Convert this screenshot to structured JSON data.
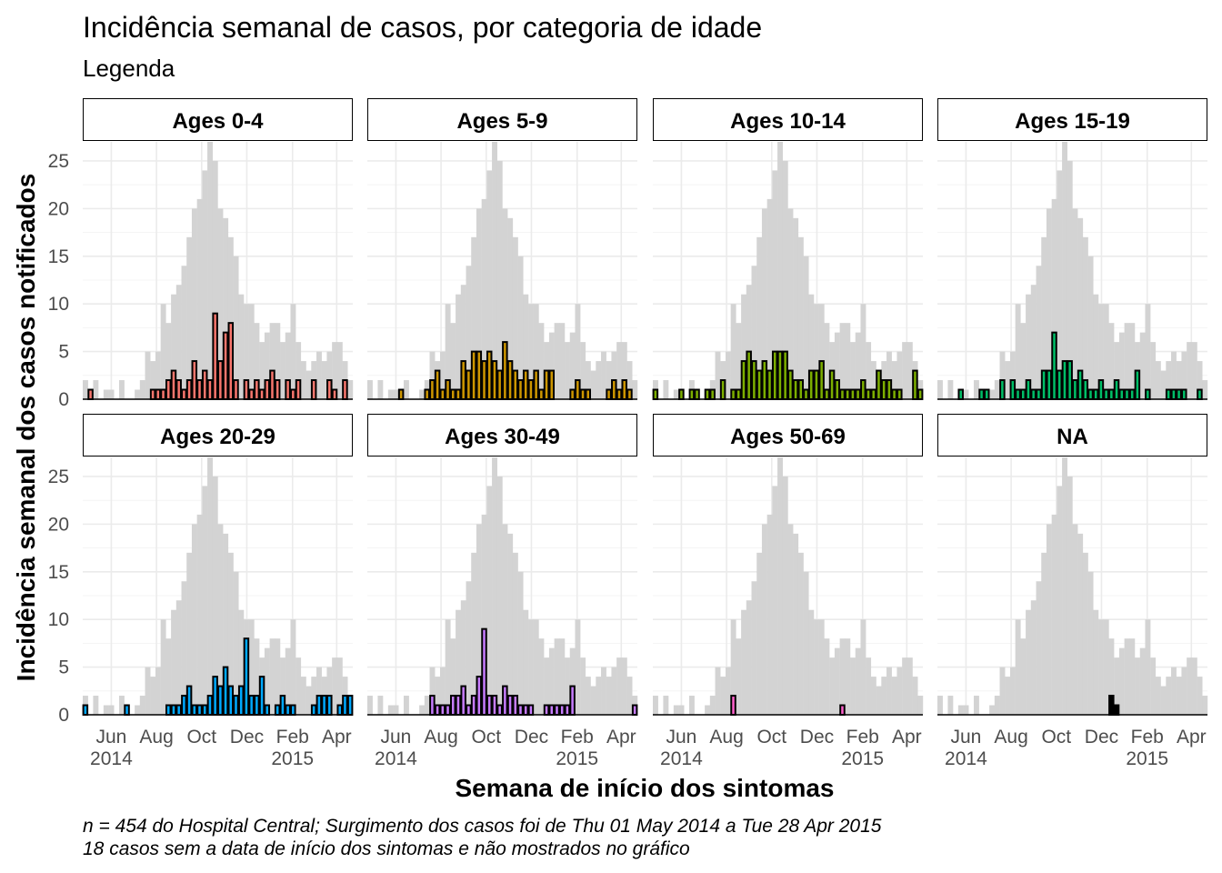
{
  "chart_data": {
    "type": "bar",
    "title": "Incidência semanal de casos, por categoria de idade",
    "subtitle": "Legenda",
    "xlabel": "Semana de início dos sintomas",
    "ylabel": "Incidência semanal dos casos notificados",
    "caption_lines": [
      "n = 454 do Hospital Central; Surgimento dos casos foi de Thu 01 May 2014 a Tue 28 Apr 2015",
      "18 casos sem a data de início dos sintomas e não mostrados no gráfico"
    ],
    "ylim": [
      0,
      27
    ],
    "y_ticks": [
      0,
      5,
      10,
      15,
      20,
      25
    ],
    "x_ticks": [
      {
        "week": 5,
        "label": "Jun",
        "sub": "2014"
      },
      {
        "week": 13.7,
        "label": "Aug",
        "sub": ""
      },
      {
        "week": 22.4,
        "label": "Oct",
        "sub": ""
      },
      {
        "week": 31.1,
        "label": "Dec",
        "sub": ""
      },
      {
        "week": 39.9,
        "label": "Feb",
        "sub": "2015"
      },
      {
        "week": 48.4,
        "label": "Apr",
        "sub": ""
      }
    ],
    "weeks": 52,
    "background_series": [
      2,
      0,
      2,
      0,
      1,
      1,
      0,
      2,
      0,
      0,
      1,
      2,
      5,
      4,
      5,
      10,
      8,
      11,
      12,
      14,
      17,
      20,
      21,
      24,
      27,
      25,
      20,
      19,
      17,
      15,
      11,
      10,
      10,
      8,
      6,
      7,
      8,
      8,
      6,
      7,
      10,
      6,
      4,
      3,
      4,
      5,
      4,
      5,
      6,
      6,
      4,
      2
    ],
    "background_color": "#d3d3d3",
    "panels": [
      {
        "name": "Ages 0-4",
        "color": "#f8766d",
        "values": [
          0,
          1,
          0,
          0,
          0,
          0,
          0,
          0,
          0,
          0,
          0,
          0,
          0,
          1,
          1,
          1,
          2,
          3,
          2,
          1,
          2,
          4,
          2,
          3,
          2,
          9,
          4,
          7,
          8,
          2,
          0,
          2,
          1,
          2,
          1,
          2,
          3,
          2,
          0,
          2,
          1,
          2,
          0,
          0,
          2,
          0,
          0,
          2,
          1,
          0,
          2,
          0
        ]
      },
      {
        "name": "Ages 5-9",
        "color": "#cd9600",
        "values": [
          0,
          0,
          0,
          0,
          0,
          0,
          1,
          0,
          0,
          0,
          0,
          1,
          2,
          3,
          1,
          2,
          1,
          1,
          4,
          3,
          5,
          5,
          4,
          5,
          4,
          3,
          6,
          4,
          3,
          2,
          3,
          2,
          3,
          1,
          3,
          3,
          0,
          0,
          0,
          1,
          2,
          1,
          1,
          0,
          0,
          0,
          1,
          2,
          1,
          2,
          1,
          0
        ]
      },
      {
        "name": "Ages 10-14",
        "color": "#7cae00",
        "values": [
          1,
          0,
          0,
          0,
          0,
          1,
          0,
          1,
          1,
          0,
          1,
          1,
          0,
          2,
          0,
          1,
          1,
          4,
          5,
          4,
          3,
          4,
          3,
          5,
          5,
          5,
          3,
          2,
          2,
          1,
          3,
          3,
          4,
          1,
          3,
          2,
          1,
          1,
          1,
          1,
          2,
          1,
          1,
          3,
          2,
          2,
          1,
          1,
          0,
          0,
          3,
          1
        ]
      },
      {
        "name": "Ages 15-19",
        "color": "#00be67",
        "values": [
          0,
          0,
          0,
          0,
          1,
          0,
          0,
          0,
          1,
          1,
          0,
          0,
          2,
          0,
          2,
          1,
          1,
          2,
          1,
          1,
          3,
          3,
          7,
          3,
          4,
          4,
          2,
          3,
          2,
          1,
          1,
          2,
          1,
          1,
          2,
          1,
          1,
          1,
          3,
          0,
          1,
          0,
          0,
          0,
          1,
          1,
          1,
          1,
          0,
          0,
          1,
          0
        ]
      },
      {
        "name": "Ages 20-29",
        "color": "#00a9ff",
        "values": [
          1,
          0,
          0,
          0,
          0,
          0,
          0,
          0,
          1,
          0,
          0,
          0,
          0,
          0,
          0,
          0,
          1,
          1,
          1,
          2,
          3,
          1,
          1,
          1,
          2,
          4,
          3,
          5,
          3,
          2,
          3,
          8,
          2,
          2,
          4,
          1,
          0,
          1,
          2,
          1,
          1,
          0,
          0,
          0,
          1,
          2,
          2,
          2,
          0,
          1,
          2,
          2
        ]
      },
      {
        "name": "Ages 30-49",
        "color": "#c77cff",
        "values": [
          0,
          0,
          0,
          0,
          0,
          0,
          0,
          0,
          0,
          0,
          0,
          0,
          2,
          1,
          1,
          1,
          2,
          2,
          3,
          1,
          2,
          4,
          9,
          2,
          2,
          1,
          3,
          2,
          2,
          1,
          1,
          1,
          0,
          0,
          1,
          1,
          1,
          1,
          1,
          3,
          0,
          0,
          0,
          0,
          0,
          0,
          0,
          0,
          0,
          0,
          0,
          1
        ]
      },
      {
        "name": "Ages 50-69",
        "color": "#ff61cc",
        "values": [
          0,
          0,
          0,
          0,
          0,
          0,
          0,
          0,
          0,
          0,
          0,
          0,
          0,
          0,
          0,
          2,
          0,
          0,
          0,
          0,
          0,
          0,
          0,
          0,
          0,
          0,
          0,
          0,
          0,
          0,
          0,
          0,
          0,
          0,
          0,
          0,
          1,
          0,
          0,
          0,
          0,
          0,
          0,
          0,
          0,
          0,
          0,
          0,
          0,
          0,
          0,
          0
        ]
      },
      {
        "name": "NA",
        "color": "#000000",
        "values": [
          0,
          0,
          0,
          0,
          0,
          0,
          0,
          0,
          0,
          0,
          0,
          0,
          0,
          0,
          0,
          0,
          0,
          0,
          0,
          0,
          0,
          0,
          0,
          0,
          0,
          0,
          0,
          0,
          0,
          0,
          0,
          0,
          0,
          2,
          1,
          0,
          0,
          0,
          0,
          0,
          0,
          0,
          0,
          0,
          0,
          0,
          0,
          0,
          0,
          0,
          0,
          0
        ]
      }
    ]
  }
}
